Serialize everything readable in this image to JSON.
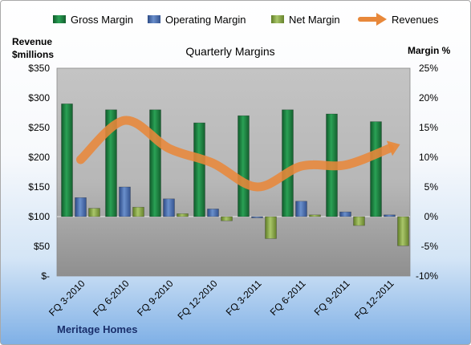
{
  "chart_data": {
    "type": "bar",
    "title": "Quarterly Margins",
    "company": "Meritage Homes",
    "left_axis_label": [
      "Revenue",
      "$millions"
    ],
    "right_axis_label": "Margin %",
    "left_axis": {
      "ylim": [
        0,
        350
      ],
      "ticks": [
        0,
        50,
        100,
        150,
        200,
        250,
        300,
        350
      ],
      "tick_labels": [
        "$-",
        "$50",
        "$100",
        "$150",
        "$200",
        "$250",
        "$300",
        "$350"
      ]
    },
    "right_axis": {
      "ylim": [
        -10,
        25
      ],
      "ticks": [
        -10,
        -5,
        0,
        5,
        10,
        15,
        20,
        25
      ],
      "tick_labels": [
        "-10%",
        "-5%",
        "0%",
        "5%",
        "10%",
        "15%",
        "20%",
        "25%"
      ]
    },
    "categories": [
      "FQ 3-2010",
      "FQ 6-2010",
      "FQ 9-2010",
      "FQ 12-2010",
      "FQ 3-2011",
      "FQ 6-2011",
      "FQ 9-2011",
      "FQ 12-2011"
    ],
    "series": [
      {
        "name": "Gross Margin",
        "type": "bar",
        "axis": "right",
        "color": "#1e8a45",
        "values": [
          19.0,
          18.0,
          18.0,
          15.8,
          17.0,
          18.0,
          17.3,
          16.0
        ]
      },
      {
        "name": "Operating Margin",
        "type": "bar",
        "axis": "right",
        "color": "#4a6fb0",
        "values": [
          3.2,
          5.0,
          3.0,
          1.3,
          0.0,
          2.6,
          0.8,
          0.3
        ]
      },
      {
        "name": "Net Margin",
        "type": "bar",
        "axis": "right",
        "color": "#8fb04a",
        "values": [
          1.4,
          1.6,
          0.5,
          -0.7,
          -3.7,
          0.3,
          -1.5,
          -4.9
        ]
      },
      {
        "name": "Revenues",
        "type": "line",
        "axis": "left",
        "color": "#e8883a",
        "values": [
          196,
          262,
          215,
          190,
          150,
          185,
          187,
          215
        ]
      }
    ],
    "grid": false,
    "legend_position": "top"
  }
}
